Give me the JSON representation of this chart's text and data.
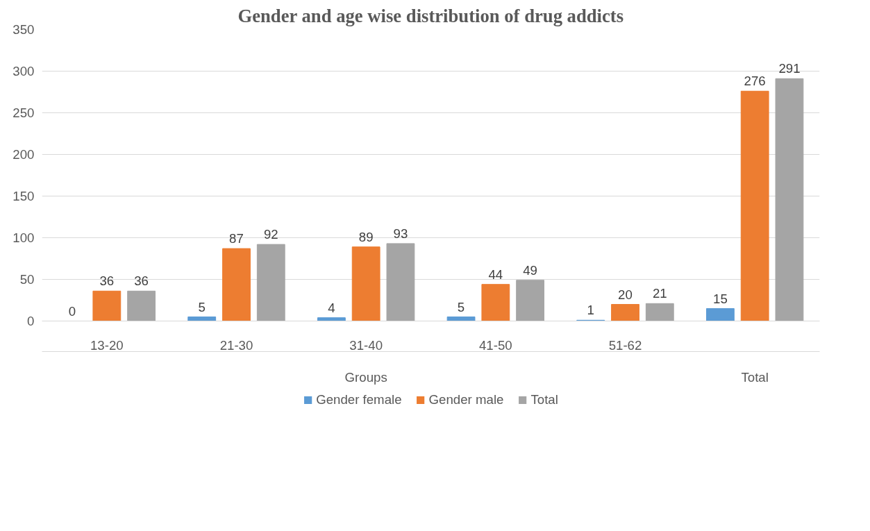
{
  "chart_data": {
    "type": "bar",
    "title": "Gender and age wise distribution of drug addicts",
    "categories": [
      "13-20",
      "21-30",
      "31-40",
      "41-50",
      "51-62",
      null
    ],
    "series": [
      {
        "name": "Gender female",
        "color": "#5b9bd5",
        "values": [
          0,
          5,
          4,
          5,
          1,
          15
        ]
      },
      {
        "name": "Gender male",
        "color": "#ed7d31",
        "values": [
          36,
          87,
          89,
          44,
          20,
          276
        ]
      },
      {
        "name": "Total",
        "color": "#a5a5a5",
        "values": [
          36,
          92,
          93,
          49,
          21,
          291
        ]
      }
    ],
    "annotations": [
      "Groups",
      "Total"
    ],
    "ylim": [
      0,
      350
    ],
    "yticks": [
      0,
      50,
      100,
      150,
      200,
      250,
      300,
      350
    ],
    "grid": "y",
    "legend": "bottom",
    "data_labels": true
  }
}
